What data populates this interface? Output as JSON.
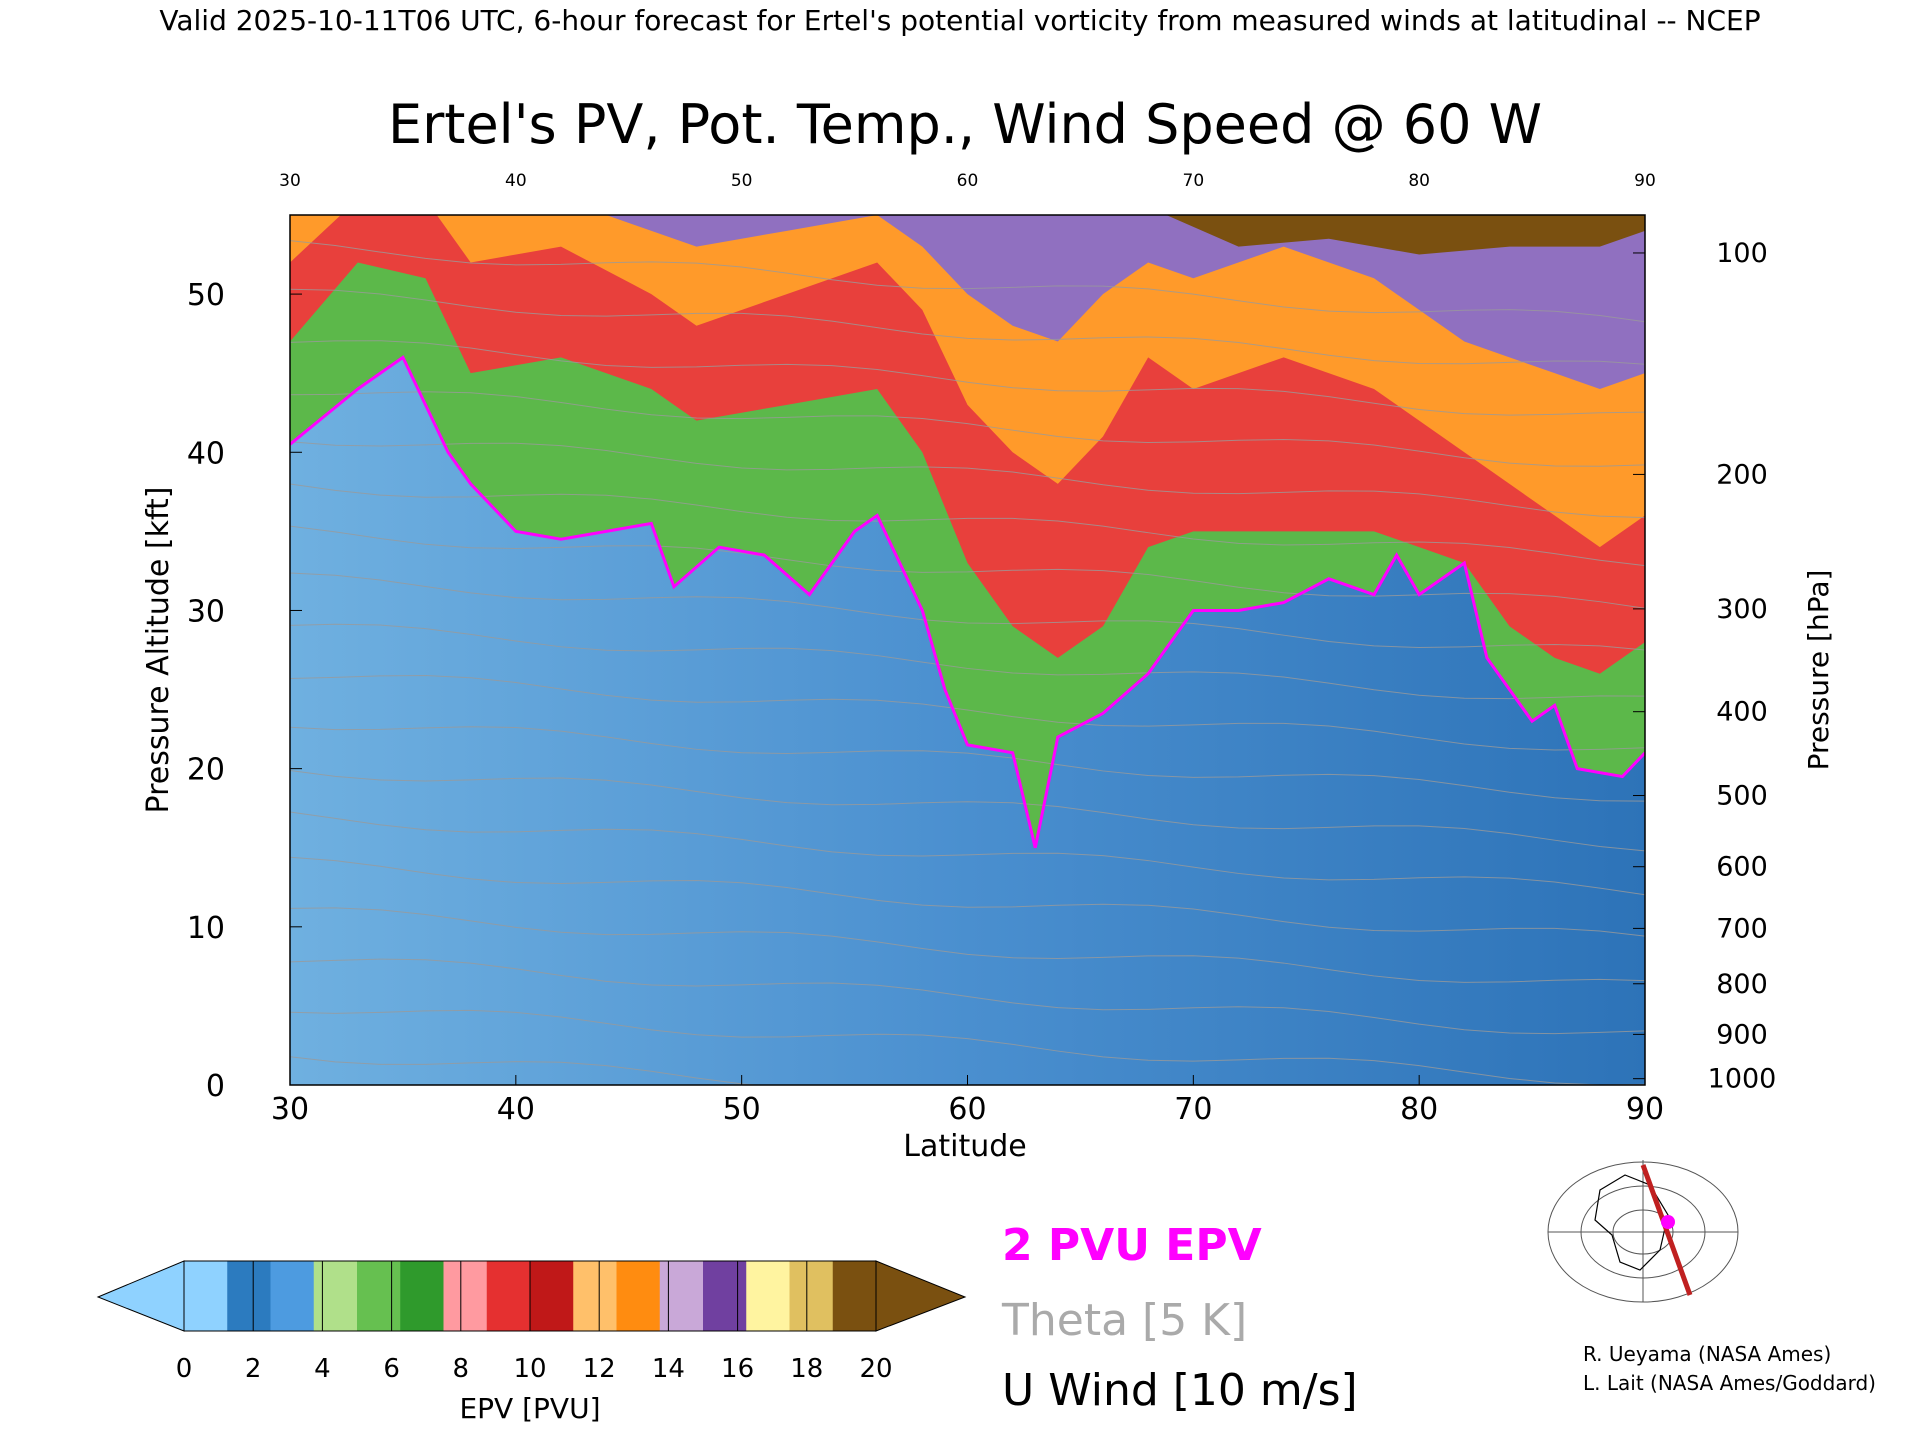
{
  "header": {
    "valid_line": "Valid 2025-10-11T06 UTC, 6-hour forecast for Ertel's potential vorticity from measured winds at latitudinal -- NCEP"
  },
  "chart_data": {
    "type": "heatmap",
    "title": "Ertel's PV, Pot. Temp., Wind Speed @ 60 W",
    "xlabel": "Latitude",
    "ylabel_left": "Pressure Altitude [kft]",
    "ylabel_right": "Pressure [hPa]",
    "xlim": [
      30,
      90
    ],
    "ylim": [
      0,
      55
    ],
    "x_ticks": [
      "30",
      "40",
      "50",
      "60",
      "70",
      "80",
      "90"
    ],
    "y_ticks": [
      "0",
      "10",
      "20",
      "30",
      "40",
      "50"
    ],
    "pressure_ticks": [
      {
        "label": "100",
        "kft": 52.6
      },
      {
        "label": "200",
        "kft": 38.6
      },
      {
        "label": "300",
        "kft": 30.1
      },
      {
        "label": "400",
        "kft": 23.6
      },
      {
        "label": "500",
        "kft": 18.3
      },
      {
        "label": "600",
        "kft": 13.8
      },
      {
        "label": "700",
        "kft": 9.9
      },
      {
        "label": "800",
        "kft": 6.4
      },
      {
        "label": "900",
        "kft": 3.2
      },
      {
        "label": "1000",
        "kft": 0.4
      }
    ],
    "tropopause_2pvu_kft": [
      [
        30,
        40.5
      ],
      [
        33,
        44
      ],
      [
        35,
        46
      ],
      [
        37,
        40
      ],
      [
        38,
        38
      ],
      [
        40,
        35
      ],
      [
        42,
        34.5
      ],
      [
        44,
        35
      ],
      [
        46,
        35.5
      ],
      [
        47,
        31.5
      ],
      [
        49,
        34
      ],
      [
        51,
        33.5
      ],
      [
        53,
        31
      ],
      [
        55,
        35
      ],
      [
        56,
        36
      ],
      [
        58,
        30
      ],
      [
        59,
        25
      ],
      [
        60,
        21.5
      ],
      [
        62,
        21
      ],
      [
        63,
        15
      ],
      [
        64,
        22
      ],
      [
        66,
        23.5
      ],
      [
        68,
        26
      ],
      [
        70,
        30
      ],
      [
        72,
        30
      ],
      [
        74,
        30.5
      ],
      [
        76,
        32
      ],
      [
        78,
        31
      ],
      [
        79,
        33.5
      ],
      [
        80,
        31
      ],
      [
        82,
        33
      ],
      [
        83,
        27
      ],
      [
        85,
        23
      ],
      [
        86,
        24
      ],
      [
        87,
        20
      ],
      [
        89,
        19.5
      ],
      [
        90,
        21
      ]
    ],
    "upper_bands_kft": {
      "green_top": [
        [
          30,
          47
        ],
        [
          33,
          52
        ],
        [
          36,
          51
        ],
        [
          38,
          45
        ],
        [
          42,
          46
        ],
        [
          46,
          44
        ],
        [
          48,
          42
        ],
        [
          52,
          43
        ],
        [
          56,
          44
        ],
        [
          58,
          40
        ],
        [
          60,
          33
        ],
        [
          62,
          29
        ],
        [
          64,
          27
        ],
        [
          66,
          29
        ],
        [
          68,
          34
        ],
        [
          70,
          35
        ],
        [
          74,
          35
        ],
        [
          78,
          35
        ],
        [
          80,
          34
        ],
        [
          82,
          33
        ],
        [
          84,
          29
        ],
        [
          86,
          27
        ],
        [
          88,
          26
        ],
        [
          90,
          28
        ]
      ],
      "red_top": [
        [
          30,
          52
        ],
        [
          33,
          56
        ],
        [
          36,
          56
        ],
        [
          38,
          52
        ],
        [
          42,
          53
        ],
        [
          46,
          50
        ],
        [
          48,
          48
        ],
        [
          52,
          50
        ],
        [
          56,
          52
        ],
        [
          58,
          49
        ],
        [
          60,
          43
        ],
        [
          62,
          40
        ],
        [
          64,
          38
        ],
        [
          66,
          41
        ],
        [
          68,
          46
        ],
        [
          70,
          44
        ],
        [
          74,
          46
        ],
        [
          78,
          44
        ],
        [
          80,
          42
        ],
        [
          82,
          40
        ],
        [
          84,
          38
        ],
        [
          86,
          36
        ],
        [
          88,
          34
        ],
        [
          90,
          36
        ]
      ],
      "orange_top": [
        [
          30,
          56
        ],
        [
          40,
          56
        ],
        [
          44,
          55
        ],
        [
          48,
          53
        ],
        [
          52,
          54
        ],
        [
          56,
          55
        ],
        [
          58,
          53
        ],
        [
          60,
          50
        ],
        [
          62,
          48
        ],
        [
          64,
          47
        ],
        [
          66,
          50
        ],
        [
          68,
          52
        ],
        [
          70,
          51
        ],
        [
          74,
          53
        ],
        [
          78,
          51
        ],
        [
          80,
          49
        ],
        [
          82,
          47
        ],
        [
          84,
          46
        ],
        [
          86,
          45
        ],
        [
          88,
          44
        ],
        [
          90,
          45
        ]
      ],
      "purple_top": [
        [
          30,
          56
        ],
        [
          46,
          56
        ],
        [
          50,
          56
        ],
        [
          54,
          56
        ],
        [
          58,
          56
        ],
        [
          60,
          55
        ],
        [
          62,
          54
        ],
        [
          64,
          52
        ],
        [
          66,
          54
        ],
        [
          68,
          55
        ],
        [
          72,
          55
        ],
        [
          76,
          55
        ],
        [
          80,
          54
        ],
        [
          82,
          52
        ],
        [
          84,
          51
        ],
        [
          86,
          50
        ],
        [
          88,
          49
        ],
        [
          90,
          51
        ]
      ],
      "brown_top": [
        [
          62,
          56
        ],
        [
          66,
          56
        ],
        [
          68,
          55.5
        ],
        [
          72,
          53
        ],
        [
          76,
          53.5
        ],
        [
          80,
          52.5
        ],
        [
          84,
          53
        ],
        [
          88,
          53
        ],
        [
          90,
          54
        ]
      ]
    },
    "theta_levels_kft": [
      2,
      5,
      8,
      11,
      14,
      17,
      20,
      23,
      26,
      29,
      32,
      35,
      38,
      41,
      44,
      47,
      50,
      53
    ],
    "colorbar": {
      "label": "EPV [PVU]",
      "ticks": [
        "0",
        "2",
        "4",
        "6",
        "8",
        "10",
        "12",
        "14",
        "16",
        "18",
        "20"
      ],
      "colors": [
        "#8fd2ff",
        "#2c7bbf",
        "#4d9be0",
        "#b0e08a",
        "#66c050",
        "#2f9a2c",
        "#ff9aa0",
        "#e53030",
        "#c01818",
        "#ffc06a",
        "#ff8c10",
        "#c9a8d8",
        "#7040a0",
        "#fff4a0",
        "#e0c060",
        "#7a5010"
      ]
    },
    "legend": [
      {
        "text": "2 PVU EPV",
        "color": "#ff00ff"
      },
      {
        "text": "Theta [5 K]",
        "color": "#aaaaaa"
      },
      {
        "text": "U Wind [10 m/s]",
        "color": "#000000"
      }
    ],
    "grid": false
  },
  "credits": [
    "R. Ueyama (NASA Ames)",
    "L. Lait (NASA Ames/Goddard)"
  ]
}
